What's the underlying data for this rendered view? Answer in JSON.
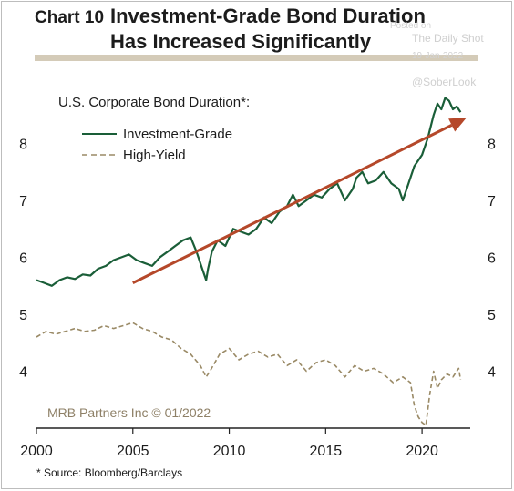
{
  "chart_data": {
    "type": "line",
    "chart_label": "Chart 10",
    "title_line1": "Investment-Grade Bond Duration",
    "title_line2": "Has Increased Significantly",
    "subtitle": "U.S. Corporate Bond Duration*:",
    "watermark": [
      "Posted on",
      "The Daily Shot",
      "19-Jan-2022",
      "@SoberLook"
    ],
    "credit": "MRB Partners Inc © 01/2022",
    "source": "* Source: Bloomberg/Barclays",
    "xlim": [
      2000,
      2022.5
    ],
    "ylim": [
      3.0,
      9.0
    ],
    "x_ticks": [
      2000,
      2005,
      2010,
      2015,
      2020
    ],
    "y_ticks": [
      4,
      5,
      6,
      7,
      8
    ],
    "legend_placement": "top-left",
    "colors": {
      "investment_grade": "#1a5e38",
      "high_yield": "#9a8a66",
      "trend_arrow": "#b5482a",
      "rule": "#d4cbb8"
    },
    "trend_arrow": {
      "from": [
        2005.0,
        5.55
      ],
      "to": [
        2022.3,
        8.45
      ]
    },
    "series": [
      {
        "name": "Investment-Grade",
        "style": "solid",
        "x": [
          2000.0,
          2000.4,
          2000.8,
          2001.2,
          2001.6,
          2002.0,
          2002.4,
          2002.8,
          2003.2,
          2003.6,
          2004.0,
          2004.4,
          2004.8,
          2005.2,
          2005.6,
          2006.0,
          2006.4,
          2006.8,
          2007.2,
          2007.6,
          2008.0,
          2008.3,
          2008.6,
          2008.8,
          2008.9,
          2009.1,
          2009.4,
          2009.8,
          2010.2,
          2010.6,
          2011.0,
          2011.4,
          2011.8,
          2012.2,
          2012.6,
          2013.0,
          2013.3,
          2013.6,
          2014.0,
          2014.4,
          2014.8,
          2015.2,
          2015.6,
          2016.0,
          2016.4,
          2016.6,
          2016.9,
          2017.2,
          2017.6,
          2018.0,
          2018.4,
          2018.8,
          2019.0,
          2019.3,
          2019.6,
          2020.0,
          2020.3,
          2020.6,
          2020.8,
          2021.0,
          2021.2,
          2021.4,
          2021.6,
          2021.8,
          2022.0
        ],
        "y": [
          5.6,
          5.55,
          5.5,
          5.6,
          5.65,
          5.62,
          5.7,
          5.68,
          5.8,
          5.85,
          5.95,
          6.0,
          6.05,
          5.95,
          5.9,
          5.85,
          6.0,
          6.1,
          6.2,
          6.3,
          6.35,
          6.1,
          5.8,
          5.6,
          5.8,
          6.1,
          6.3,
          6.2,
          6.5,
          6.45,
          6.4,
          6.5,
          6.7,
          6.6,
          6.8,
          6.9,
          7.1,
          6.9,
          7.0,
          7.1,
          7.05,
          7.2,
          7.3,
          7.0,
          7.2,
          7.4,
          7.5,
          7.3,
          7.35,
          7.5,
          7.3,
          7.2,
          7.0,
          7.3,
          7.6,
          7.8,
          8.1,
          8.5,
          8.7,
          8.6,
          8.8,
          8.75,
          8.6,
          8.65,
          8.55
        ]
      },
      {
        "name": "High-Yield",
        "style": "dashed",
        "x": [
          2000.0,
          2000.5,
          2001.0,
          2001.5,
          2002.0,
          2002.5,
          2003.0,
          2003.5,
          2004.0,
          2004.5,
          2005.0,
          2005.5,
          2006.0,
          2006.5,
          2007.0,
          2007.5,
          2008.0,
          2008.5,
          2008.8,
          2009.0,
          2009.5,
          2010.0,
          2010.5,
          2011.0,
          2011.5,
          2012.0,
          2012.5,
          2013.0,
          2013.5,
          2014.0,
          2014.5,
          2015.0,
          2015.5,
          2016.0,
          2016.5,
          2017.0,
          2017.5,
          2018.0,
          2018.5,
          2019.0,
          2019.4,
          2019.6,
          2019.8,
          2020.0,
          2020.2,
          2020.4,
          2020.6,
          2020.8,
          2021.0,
          2021.3,
          2021.6,
          2021.9,
          2022.0
        ],
        "y": [
          4.6,
          4.7,
          4.65,
          4.7,
          4.75,
          4.7,
          4.72,
          4.8,
          4.75,
          4.8,
          4.85,
          4.75,
          4.7,
          4.6,
          4.55,
          4.4,
          4.3,
          4.1,
          3.9,
          4.0,
          4.3,
          4.4,
          4.2,
          4.3,
          4.35,
          4.25,
          4.3,
          4.1,
          4.2,
          4.0,
          4.15,
          4.2,
          4.1,
          3.9,
          4.1,
          4.0,
          4.05,
          3.95,
          3.8,
          3.9,
          3.8,
          3.4,
          3.2,
          3.1,
          3.05,
          3.6,
          4.0,
          3.7,
          3.85,
          3.95,
          3.9,
          4.05,
          3.85
        ]
      }
    ]
  }
}
